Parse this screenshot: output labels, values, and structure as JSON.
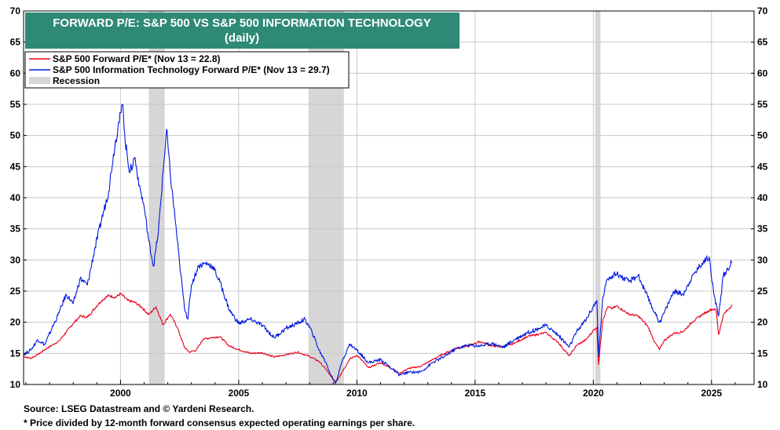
{
  "chart_data": {
    "type": "line",
    "title": "FORWARD P/E: S&P 500 VS S&P 500 INFORMATION TECHNOLOGY",
    "subtitle": "(daily)",
    "xlabel": "",
    "ylabel": "",
    "xlim": [
      1995.9,
      2026.8
    ],
    "ylim": [
      10,
      70
    ],
    "y_ticks": [
      10,
      15,
      20,
      25,
      30,
      35,
      40,
      45,
      50,
      55,
      60,
      65,
      70
    ],
    "x_ticks": [
      2000,
      2005,
      2010,
      2015,
      2020,
      2025
    ],
    "grid": true,
    "legend_position": "top-left",
    "legend": [
      {
        "label": "S&P 500 Forward P/E* (Nov 13 = 22.8)",
        "color": "#e8001c",
        "kind": "line"
      },
      {
        "label": "S&P 500 Information Technology Forward P/E* (Nov 13 = 29.7)",
        "color": "#0018e0",
        "kind": "line"
      },
      {
        "label": "Recession",
        "color": "#d6d6d6",
        "kind": "box"
      }
    ],
    "recessions": [
      [
        2001.2,
        2001.87
      ],
      [
        2007.95,
        2009.45
      ],
      [
        2020.08,
        2020.3
      ]
    ],
    "series": [
      {
        "color": "#e8001c",
        "x": [
          1995.9,
          1996.2,
          1996.5,
          1996.8,
          1997.1,
          1997.4,
          1997.7,
          1998.0,
          1998.3,
          1998.6,
          1998.9,
          1999.2,
          1999.5,
          1999.8,
          2000.0,
          2000.3,
          2000.6,
          2000.9,
          2001.2,
          2001.5,
          2001.8,
          2002.1,
          2002.4,
          2002.7,
          2002.9,
          2003.2,
          2003.5,
          2003.8,
          2004.2,
          2004.6,
          2005.0,
          2005.5,
          2006.0,
          2006.5,
          2007.0,
          2007.5,
          2008.0,
          2008.4,
          2008.7,
          2008.9,
          2009.1,
          2009.4,
          2009.7,
          2010.0,
          2010.5,
          2011.0,
          2011.5,
          2011.8,
          2012.2,
          2012.7,
          2013.2,
          2013.7,
          2014.2,
          2014.7,
          2015.2,
          2015.7,
          2016.2,
          2016.7,
          2017.2,
          2017.7,
          2018.0,
          2018.5,
          2018.98,
          2019.3,
          2019.7,
          2020.0,
          2020.15,
          2020.22,
          2020.4,
          2020.6,
          2020.8,
          2021.0,
          2021.5,
          2021.9,
          2022.3,
          2022.6,
          2022.8,
          2023.0,
          2023.4,
          2023.8,
          2024.2,
          2024.6,
          2025.0,
          2025.2,
          2025.3,
          2025.5,
          2025.87
        ],
        "values": [
          14.5,
          14.2,
          14.8,
          15.6,
          16.3,
          17.0,
          18.4,
          19.8,
          21.0,
          20.8,
          22.2,
          23.5,
          24.3,
          24.0,
          24.6,
          23.5,
          23.2,
          22.4,
          21.2,
          22.5,
          19.6,
          21.3,
          19.2,
          16.0,
          15.2,
          15.5,
          17.3,
          17.5,
          17.7,
          16.2,
          15.6,
          15.0,
          15.1,
          14.4,
          14.8,
          15.2,
          14.5,
          13.7,
          12.4,
          11.3,
          10.3,
          12.2,
          14.1,
          14.7,
          12.7,
          13.5,
          12.5,
          11.8,
          12.6,
          12.9,
          14.0,
          15.0,
          15.8,
          16.2,
          16.9,
          16.2,
          16.0,
          16.7,
          17.7,
          18.1,
          18.3,
          16.8,
          14.6,
          16.3,
          17.2,
          18.7,
          19.2,
          13.2,
          20.4,
          22.4,
          22.2,
          22.6,
          21.3,
          21.0,
          19.4,
          16.8,
          15.6,
          17.1,
          18.2,
          18.5,
          20.1,
          21.2,
          22.1,
          22.0,
          18.0,
          21.2,
          22.8
        ]
      },
      {
        "color": "#0018e0",
        "x": [
          1995.9,
          1996.2,
          1996.5,
          1996.8,
          1997.1,
          1997.4,
          1997.7,
          1998.0,
          1998.3,
          1998.6,
          1998.9,
          1999.2,
          1999.5,
          1999.7,
          1999.9,
          2000.1,
          2000.2,
          2000.4,
          2000.6,
          2000.8,
          2001.0,
          2001.2,
          2001.4,
          2001.6,
          2001.8,
          2001.95,
          2002.1,
          2002.3,
          2002.5,
          2002.7,
          2002.85,
          2003.0,
          2003.3,
          2003.6,
          2003.9,
          2004.2,
          2004.6,
          2005.0,
          2005.5,
          2006.0,
          2006.5,
          2007.0,
          2007.4,
          2007.8,
          2008.1,
          2008.4,
          2008.7,
          2008.9,
          2009.1,
          2009.4,
          2009.7,
          2010.0,
          2010.5,
          2011.0,
          2011.5,
          2011.8,
          2012.2,
          2012.7,
          2013.2,
          2013.7,
          2014.2,
          2014.7,
          2015.2,
          2015.7,
          2016.2,
          2016.7,
          2017.2,
          2017.7,
          2018.0,
          2018.5,
          2018.98,
          2019.3,
          2019.7,
          2020.0,
          2020.15,
          2020.22,
          2020.4,
          2020.6,
          2020.8,
          2021.0,
          2021.5,
          2021.9,
          2022.3,
          2022.6,
          2022.8,
          2023.0,
          2023.4,
          2023.8,
          2024.2,
          2024.6,
          2024.9,
          2025.1,
          2025.3,
          2025.5,
          2025.87
        ],
        "values": [
          14.8,
          15.5,
          17.2,
          16.4,
          19.0,
          21.5,
          24.5,
          23.0,
          27.0,
          26.0,
          31.5,
          36.5,
          41.0,
          47.0,
          51.5,
          55.0,
          49.0,
          44.0,
          46.5,
          42.0,
          38.5,
          33.0,
          29.0,
          34.5,
          44.0,
          51.0,
          44.0,
          37.0,
          29.5,
          22.5,
          20.5,
          26.0,
          29.0,
          29.5,
          29.0,
          26.5,
          22.0,
          19.8,
          20.5,
          19.5,
          17.5,
          19.0,
          19.7,
          20.5,
          18.5,
          15.5,
          13.5,
          11.5,
          10.2,
          14.0,
          16.5,
          15.5,
          13.5,
          14.0,
          12.5,
          11.5,
          12.0,
          12.0,
          13.5,
          14.5,
          15.8,
          16.3,
          16.2,
          16.6,
          16.0,
          17.3,
          18.3,
          19.0,
          19.5,
          18.0,
          16.0,
          18.5,
          20.5,
          22.5,
          23.5,
          14.5,
          24.0,
          27.0,
          27.5,
          27.8,
          26.5,
          27.5,
          24.0,
          21.5,
          20.0,
          21.5,
          25.0,
          24.5,
          27.5,
          29.5,
          30.5,
          24.5,
          21.0,
          27.5,
          29.7
        ]
      }
    ]
  },
  "footer": {
    "source": "Source: LSEG Datastream and © Yardeni Research.",
    "note": "* Price divided by 12-month forward consensus expected operating earnings per share."
  }
}
